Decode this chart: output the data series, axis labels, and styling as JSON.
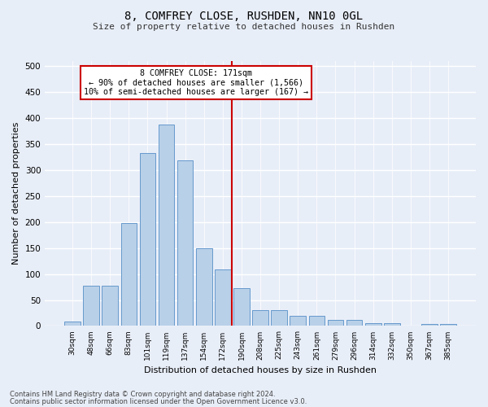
{
  "title": "8, COMFREY CLOSE, RUSHDEN, NN10 0GL",
  "subtitle": "Size of property relative to detached houses in Rushden",
  "xlabel": "Distribution of detached houses by size in Rushden",
  "ylabel": "Number of detached properties",
  "categories": [
    "30sqm",
    "48sqm",
    "66sqm",
    "83sqm",
    "101sqm",
    "119sqm",
    "137sqm",
    "154sqm",
    "172sqm",
    "190sqm",
    "208sqm",
    "225sqm",
    "243sqm",
    "261sqm",
    "279sqm",
    "296sqm",
    "314sqm",
    "332sqm",
    "350sqm",
    "367sqm",
    "385sqm"
  ],
  "values": [
    9,
    77,
    77,
    198,
    333,
    388,
    319,
    150,
    109,
    72,
    30,
    30,
    19,
    20,
    12,
    12,
    5,
    5,
    0,
    4,
    4
  ],
  "bar_color": "#b8d0e8",
  "bar_edge_color": "#6699cc",
  "vline_color": "#cc0000",
  "annotation_line1": "8 COMFREY CLOSE: 171sqm",
  "annotation_line2": "← 90% of detached houses are smaller (1,566)",
  "annotation_line3": "10% of semi-detached houses are larger (167) →",
  "annotation_box_color": "#cc0000",
  "ylim": [
    0,
    510
  ],
  "yticks": [
    0,
    50,
    100,
    150,
    200,
    250,
    300,
    350,
    400,
    450,
    500
  ],
  "footer_line1": "Contains HM Land Registry data © Crown copyright and database right 2024.",
  "footer_line2": "Contains public sector information licensed under the Open Government Licence v3.0.",
  "bg_color": "#e8eef8",
  "plot_bg_color": "#e8eef8"
}
